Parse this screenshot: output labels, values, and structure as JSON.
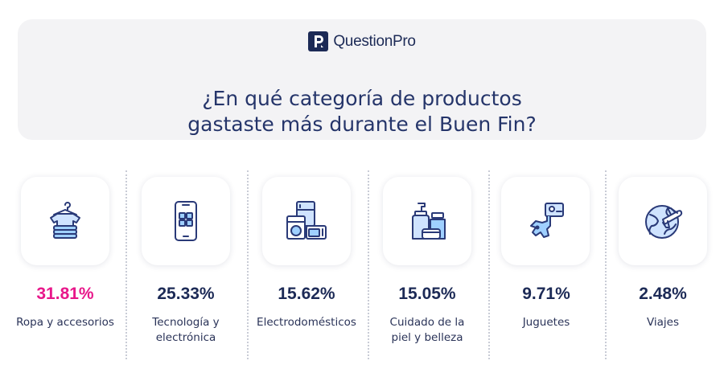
{
  "brand": {
    "name": "QuestionPro",
    "mark": "P"
  },
  "headline": {
    "line1": "¿En qué categoría de productos",
    "line2": "gastaste más durante el Buen Fin?"
  },
  "colors": {
    "navy": "#1c2a56",
    "accent": "#e8178a",
    "icon": "#2a3a78"
  },
  "chart_data": {
    "type": "bar",
    "categories": [
      "Ropa y accesorios",
      "Tecnología y electrónica",
      "Electrodomésticos",
      "Cuidado de la piel y belleza",
      "Juguetes",
      "Viajes"
    ],
    "values": [
      31.81,
      25.33,
      15.62,
      15.05,
      9.71,
      2.48
    ],
    "value_labels": [
      "31.81%",
      "25.33%",
      "15.62%",
      "15.05%",
      "9.71%",
      "2.48%"
    ],
    "label_lines": [
      [
        "Ropa y accesorios"
      ],
      [
        "Tecnología y",
        "electrónica"
      ],
      [
        "Electrodomésticos"
      ],
      [
        "Cuidado de la",
        "piel y belleza"
      ],
      [
        "Juguetes"
      ],
      [
        "Viajes"
      ]
    ],
    "icons": [
      "clothes-icon",
      "smartphone-icon",
      "appliances-icon",
      "skincare-icon",
      "toy-dinosaur-icon",
      "globe-plane-icon"
    ]
  }
}
